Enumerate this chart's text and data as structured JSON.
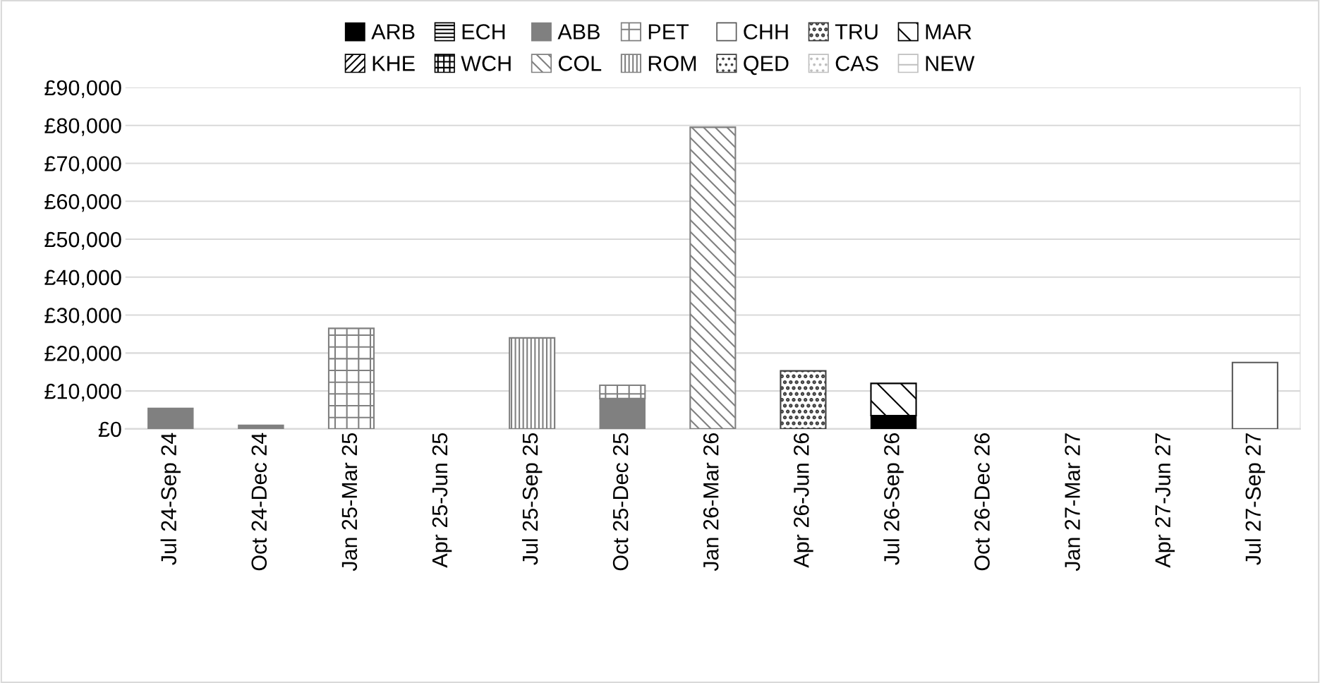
{
  "chart_data": {
    "type": "bar",
    "stacked": true,
    "legend": "top",
    "grid": "y",
    "categories": [
      "Jul 24-Sep 24",
      "Oct 24-Dec 24",
      "Jan 25-Mar 25",
      "Apr 25-Jun 25",
      "Jul 25-Sep 25",
      "Oct 25-Dec 25",
      "Jan 26-Mar 26",
      "Apr 26-Jun 26",
      "Jul 26-Sep 26",
      "Oct 26-Dec 26",
      "Jan 27-Mar 27",
      "Apr 27-Jun 27",
      "Jul 27-Sep 27"
    ],
    "ylim": [
      0,
      90000
    ],
    "yticks": [
      {
        "value": 0,
        "label": "£0"
      },
      {
        "value": 10000,
        "label": "£10,000"
      },
      {
        "value": 20000,
        "label": "£20,000"
      },
      {
        "value": 30000,
        "label": "£30,000"
      },
      {
        "value": 40000,
        "label": "£40,000"
      },
      {
        "value": 50000,
        "label": "£50,000"
      },
      {
        "value": 60000,
        "label": "£60,000"
      },
      {
        "value": 70000,
        "label": "£70,000"
      },
      {
        "value": 80000,
        "label": "£80,000"
      },
      {
        "value": 90000,
        "label": "£90,000"
      }
    ],
    "series": [
      {
        "name": "ARB",
        "color": "#000000",
        "values": [
          null,
          null,
          null,
          null,
          null,
          null,
          null,
          null,
          3500,
          null,
          null,
          null,
          null
        ]
      },
      {
        "name": "KHE",
        "color": "#000000",
        "values": [
          null,
          null,
          null,
          null,
          null,
          null,
          null,
          null,
          null,
          null,
          null,
          null,
          null
        ]
      },
      {
        "name": "ECH",
        "color": "#000000",
        "values": [
          null,
          null,
          null,
          null,
          null,
          null,
          null,
          null,
          null,
          null,
          null,
          null,
          null
        ]
      },
      {
        "name": "WCH",
        "color": "#000000",
        "values": [
          null,
          null,
          null,
          null,
          null,
          null,
          null,
          null,
          null,
          null,
          null,
          null,
          null
        ]
      },
      {
        "name": "ABB",
        "color": "#808080",
        "values": [
          5500,
          1000,
          null,
          null,
          null,
          8000,
          null,
          null,
          null,
          null,
          null,
          null,
          null
        ]
      },
      {
        "name": "COL",
        "color": "#808080",
        "values": [
          null,
          null,
          null,
          null,
          null,
          null,
          79500,
          null,
          null,
          null,
          null,
          null,
          null
        ]
      },
      {
        "name": "PET",
        "color": "#808080",
        "values": [
          null,
          null,
          26500,
          null,
          null,
          3500,
          null,
          null,
          null,
          null,
          null,
          null,
          null
        ]
      },
      {
        "name": "ROM",
        "color": "#808080",
        "values": [
          null,
          null,
          null,
          null,
          24000,
          null,
          null,
          null,
          null,
          null,
          null,
          null,
          null
        ]
      },
      {
        "name": "CHH",
        "color": "#595959",
        "values": [
          null,
          null,
          null,
          null,
          null,
          null,
          null,
          null,
          null,
          null,
          null,
          null,
          17500
        ]
      },
      {
        "name": "QED",
        "color": "#404040",
        "values": [
          null,
          null,
          null,
          null,
          null,
          null,
          null,
          null,
          null,
          null,
          null,
          null,
          null
        ]
      },
      {
        "name": "TRU",
        "color": "#404040",
        "values": [
          null,
          null,
          null,
          null,
          null,
          null,
          null,
          15300,
          null,
          null,
          null,
          null,
          null
        ]
      },
      {
        "name": "CAS",
        "color": "#bfbfbf",
        "values": [
          null,
          null,
          null,
          null,
          null,
          null,
          null,
          null,
          null,
          null,
          null,
          null,
          null
        ]
      },
      {
        "name": "MAR",
        "color": "#000000",
        "values": [
          null,
          null,
          null,
          null,
          null,
          null,
          null,
          null,
          8500,
          null,
          null,
          null,
          null
        ]
      },
      {
        "name": "NEW",
        "color": "#bfbfbf",
        "values": [
          null,
          null,
          null,
          null,
          null,
          null,
          null,
          null,
          null,
          null,
          null,
          null,
          null
        ]
      }
    ]
  }
}
